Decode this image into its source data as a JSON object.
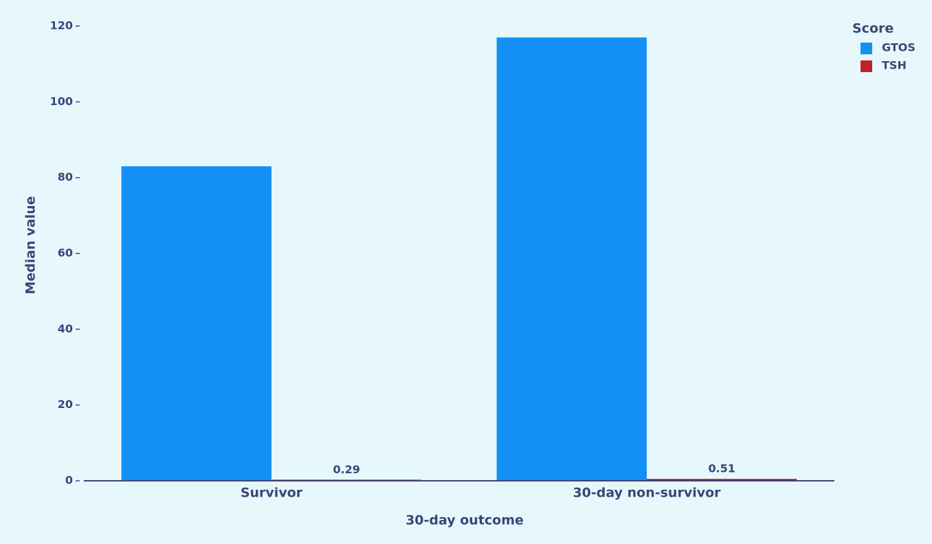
{
  "chart_data": {
    "type": "bar",
    "x_label": "30-day outcome",
    "y_label": "Median value",
    "categories": [
      "Survivor",
      "30-day non-survivor"
    ],
    "legend_title": "Score",
    "legend_position": "top-right",
    "series": [
      {
        "name": "GTOS",
        "color": "#1490f5",
        "values": [
          83,
          117
        ],
        "show_labels": false
      },
      {
        "name": "TSH",
        "color": "#c2202d",
        "values": [
          0.29,
          0.51
        ],
        "show_labels": true
      }
    ],
    "ylim": [
      0,
      120
    ],
    "yticks": [
      0,
      20,
      40,
      60,
      80,
      100,
      120
    ],
    "grid": false
  }
}
